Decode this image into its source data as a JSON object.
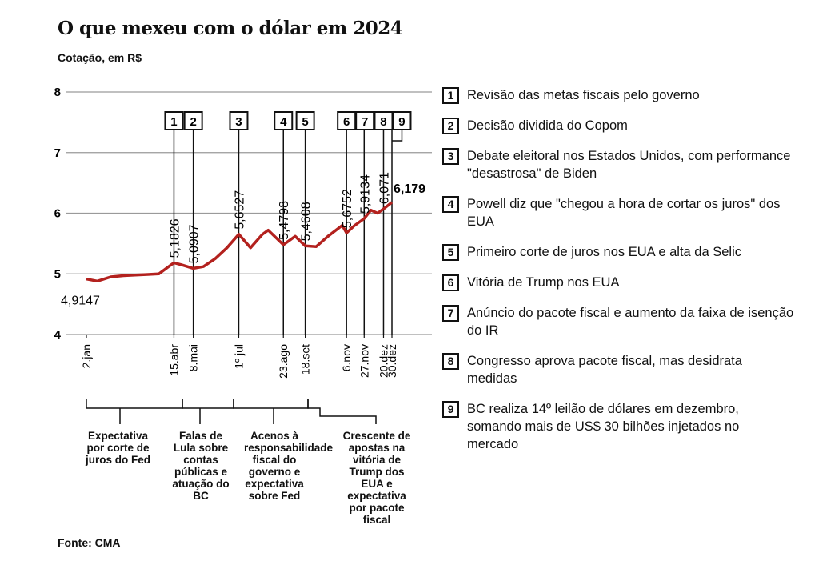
{
  "chart_data": {
    "type": "line",
    "title": "O que mexeu com o dólar em 2024",
    "subtitle": "Cotação, em R$",
    "source": "Fonte: CMA",
    "ylim": [
      4,
      8
    ],
    "yticks": [
      4,
      5,
      6,
      7,
      8
    ],
    "grid": true,
    "xlim": [
      "2024-01-02",
      "2024-12-30"
    ],
    "xticks": [
      {
        "value": "2024-01-02",
        "label": "2.jan"
      },
      {
        "value": "2024-04-15",
        "label": "15.abr"
      },
      {
        "value": "2024-05-08",
        "label": "8.mai"
      },
      {
        "value": "2024-07-01",
        "label": "1º jul"
      },
      {
        "value": "2024-08-23",
        "label": "23.ago"
      },
      {
        "value": "2024-09-18",
        "label": "18.set"
      },
      {
        "value": "2024-11-06",
        "label": "6.nov"
      },
      {
        "value": "2024-11-27",
        "label": "27.nov"
      },
      {
        "value": "2024-12-20",
        "label": "20.dez"
      },
      {
        "value": "2024-12-30",
        "label": "30.dez"
      }
    ],
    "series": [
      {
        "color": "#b3211e",
        "x": [
          "2024-01-02",
          "2024-01-15",
          "2024-01-31",
          "2024-02-15",
          "2024-02-29",
          "2024-03-15",
          "2024-03-28",
          "2024-04-15",
          "2024-04-24",
          "2024-05-08",
          "2024-05-20",
          "2024-06-03",
          "2024-06-17",
          "2024-07-01",
          "2024-07-15",
          "2024-07-29",
          "2024-08-05",
          "2024-08-23",
          "2024-09-06",
          "2024-09-18",
          "2024-10-01",
          "2024-10-15",
          "2024-11-01",
          "2024-11-06",
          "2024-11-15",
          "2024-11-27",
          "2024-12-05",
          "2024-12-13",
          "2024-12-20",
          "2024-12-30"
        ],
        "values": [
          4.9147,
          4.88,
          4.95,
          4.97,
          4.98,
          4.99,
          5.0,
          5.1826,
          5.15,
          5.0907,
          5.12,
          5.25,
          5.43,
          5.6527,
          5.43,
          5.65,
          5.72,
          5.4798,
          5.62,
          5.4608,
          5.45,
          5.62,
          5.8,
          5.6752,
          5.79,
          5.9134,
          6.05,
          6.0,
          6.071,
          6.179
        ],
        "value_labels": [
          "4,9147",
          null,
          null,
          null,
          null,
          null,
          null,
          "5,1826",
          null,
          "5,0907",
          null,
          null,
          null,
          "5,6527",
          null,
          null,
          null,
          "5,4798",
          null,
          "5,4608",
          null,
          null,
          null,
          "5,6752",
          null,
          "5,9134",
          null,
          null,
          "6,071",
          "6,179"
        ]
      }
    ],
    "markers": [
      {
        "label": "1",
        "x": "2024-04-15"
      },
      {
        "label": "2",
        "x": "2024-05-08"
      },
      {
        "label": "3",
        "x": "2024-07-01"
      },
      {
        "label": "4",
        "x": "2024-08-23"
      },
      {
        "label": "5",
        "x": "2024-09-18"
      },
      {
        "label": "6",
        "x": "2024-11-06"
      },
      {
        "label": "7",
        "x": "2024-11-27"
      },
      {
        "label": "8",
        "x": "2024-12-20"
      },
      {
        "label": "9",
        "x": "2024-12-30"
      }
    ],
    "periods": [
      "Expectativa por corte de juros do Fed",
      "Falas de Lula sobre contas públicas e atuação do BC",
      "Acenos à responsabilidade fiscal do governo e expectativa sobre Fed",
      "Crescente de apostas na vitória de Trump dos EUA e expectativa por pacote fiscal"
    ],
    "events": [
      {
        "number": "1",
        "text": "Revisão das metas fiscais pelo governo"
      },
      {
        "number": "2",
        "text": "Decisão dividida do Copom"
      },
      {
        "number": "3",
        "text": "Debate eleitoral nos Estados Unidos, com performance \"desastrosa\" de Biden"
      },
      {
        "number": "4",
        "text": "Powell diz que \"chegou a hora de cortar os juros\" dos EUA"
      },
      {
        "number": "5",
        "text": "Primeiro corte de juros nos EUA e alta da Selic"
      },
      {
        "number": "6",
        "text": "Vitória de Trump nos EUA"
      },
      {
        "number": "7",
        "text": "Anúncio do pacote fiscal e aumento da faixa de isenção do IR"
      },
      {
        "number": "8",
        "text": "Congresso aprova pacote fiscal, mas desidrata medidas"
      },
      {
        "number": "9",
        "text": "BC realiza 14º leilão de dólares em dezembro, somando mais de US$ 30 bilhões injetados no mercado"
      }
    ]
  }
}
